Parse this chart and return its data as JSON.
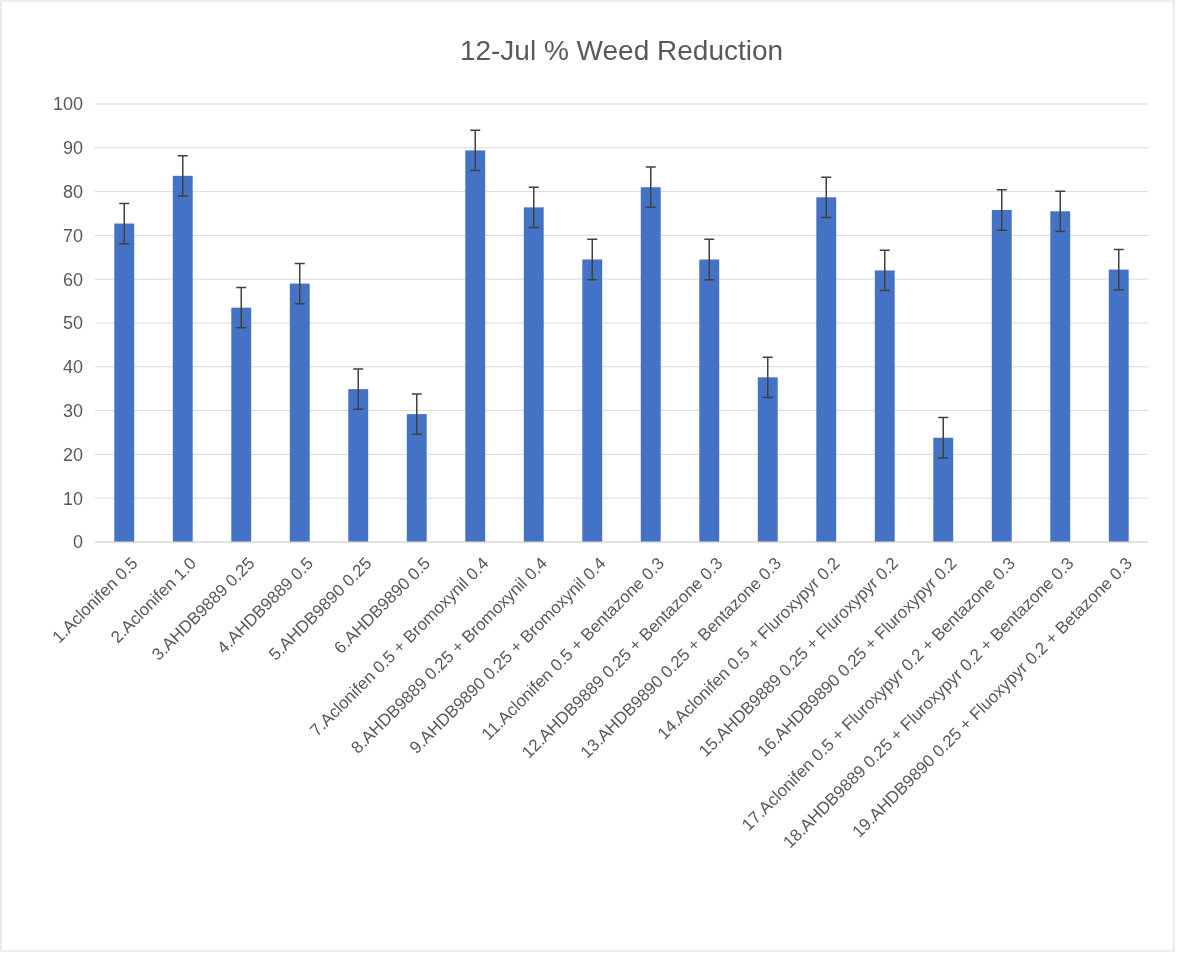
{
  "chart_data": {
    "type": "bar",
    "title": "12-Jul % Weed Reduction",
    "categories": [
      "1.Aclonifen 0.5",
      "2.Aclonifen 1.0",
      "3.AHDB9889 0.25",
      "4.AHDB9889 0.5",
      "5.AHDB9890 0.25",
      "6.AHDB9890 0.5",
      "7.Aclonifen 0.5 + Bromoxynil 0.4",
      "8.AHDB9889 0.25 + Bromoxynil 0.4",
      "9.AHDB9890 0.25 + Bromoxynil 0.4",
      "11.Aclonifen 0.5 + Bentazone 0.3",
      "12.AHDB9889 0.25 + Bentazone 0.3",
      "13.AHDB9890 0.25 + Bentazone 0.3",
      "14.Aclonifen 0.5 + Fluroxypyr 0.2",
      "15.AHDB9889 0.25 + Fluroxypyr 0.2",
      "16.AHDB9890 0.25 + Fluroxypyr 0.2",
      "17.Aclonifen 0.5 + Fluroxypyr 0.2 + Bentazone 0.3",
      "18.AHDB9889 0.25 + Fluroxypyr 0.2 + Bentazone 0.3",
      "19.AHDB9890 0.25 + Fluoxypyr 0.2 + Betazone 0.3"
    ],
    "values": [
      72.7,
      83.6,
      53.5,
      59,
      34.9,
      29.2,
      89.4,
      76.4,
      64.5,
      81,
      64.5,
      37.6,
      78.7,
      62,
      23.8,
      75.8,
      75.5,
      62.2
    ],
    "errors": [
      4.6,
      4.6,
      4.6,
      4.6,
      4.6,
      4.6,
      4.6,
      4.6,
      4.6,
      4.6,
      4.6,
      4.6,
      4.6,
      4.6,
      4.6,
      4.6,
      4.6,
      4.6
    ],
    "color": "#4472c4",
    "ylim": [
      0,
      100
    ],
    "yticks": [
      0,
      10,
      20,
      30,
      40,
      50,
      60,
      70,
      80,
      90,
      100
    ],
    "grid": "y"
  }
}
